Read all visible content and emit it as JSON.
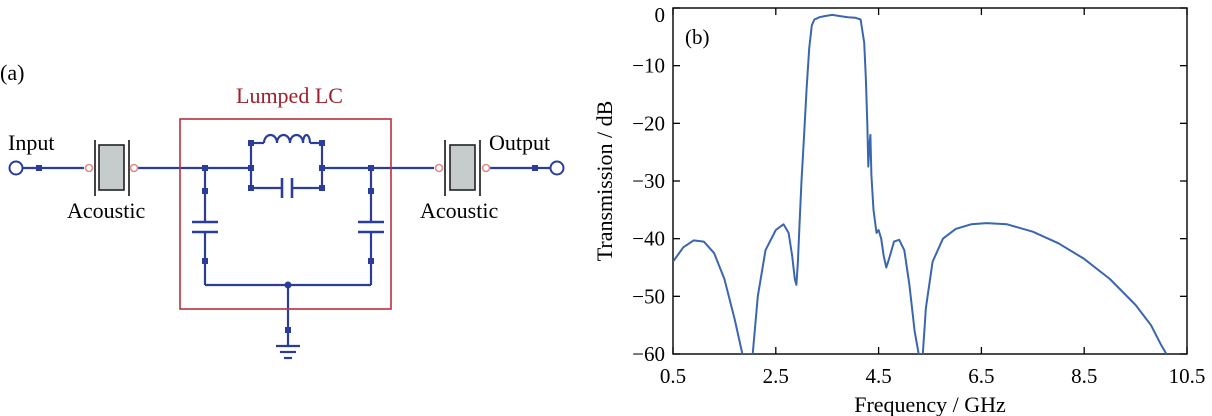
{
  "panel_a": {
    "label": "(a)",
    "input_label": "Input",
    "output_label": "Output",
    "left_resonator_label": "Acoustic",
    "right_resonator_label": "Acoustic",
    "lc_box_label": "Lumped LC",
    "colors": {
      "wire": "#2a3d9a",
      "box": "#b8303c",
      "box_label": "#a0202c",
      "resonator_fill": "#c6cbcb",
      "terminal_dot": "#e08a8a"
    }
  },
  "panel_b": {
    "label": "(b)",
    "line_color": "#3a66b0"
  },
  "chart_data": {
    "type": "line",
    "xlabel": "Frequency / GHz",
    "ylabel": "Transmission / dB",
    "xlim": [
      0.5,
      10.5
    ],
    "ylim": [
      -60,
      0
    ],
    "xticks": [
      "0.5",
      "2.5",
      "4.5",
      "6.5",
      "8.5",
      "10.5"
    ],
    "yticks": [
      "0",
      "−10",
      "−20",
      "−30",
      "−40",
      "−50",
      "−60"
    ],
    "grid": false,
    "series": [
      {
        "x": [
          0.5,
          0.7,
          0.9,
          1.1,
          1.3,
          1.5,
          1.7,
          1.85,
          1.95,
          2.0,
          2.05,
          2.15,
          2.3,
          2.5,
          2.65,
          2.75,
          2.82,
          2.87,
          2.9,
          2.93,
          2.96,
          3.0,
          3.05,
          3.1,
          3.15,
          3.2,
          3.25,
          3.3,
          3.35,
          3.45,
          3.6,
          3.75,
          3.9,
          4.05,
          4.15,
          4.22,
          4.25,
          4.28,
          4.3,
          4.32,
          4.34,
          4.36,
          4.4,
          4.46,
          4.5,
          4.55,
          4.6,
          4.65,
          4.72,
          4.8,
          4.9,
          5.0,
          5.1,
          5.2,
          5.28,
          5.33,
          5.36,
          5.42,
          5.55,
          5.75,
          6.0,
          6.3,
          6.6,
          7.0,
          7.5,
          8.0,
          8.5,
          9.0,
          9.5,
          9.8,
          10.0,
          10.1
        ],
        "y": [
          -44,
          -41.5,
          -40.3,
          -40.5,
          -42.5,
          -47,
          -54,
          -60,
          -60,
          -60,
          -60,
          -50,
          -42,
          -38.5,
          -37.5,
          -39,
          -43,
          -47,
          -48,
          -44,
          -38,
          -30,
          -22,
          -14,
          -7,
          -3,
          -2,
          -1.8,
          -1.6,
          -1.4,
          -1.2,
          -1.4,
          -1.6,
          -1.7,
          -2,
          -6,
          -12,
          -20,
          -27.5,
          -24,
          -22,
          -29,
          -35,
          -39,
          -38.5,
          -40,
          -43,
          -45,
          -43,
          -40.5,
          -40.2,
          -42,
          -48,
          -56,
          -60,
          -60,
          -60,
          -52,
          -44,
          -40,
          -38.3,
          -37.5,
          -37.3,
          -37.5,
          -38.8,
          -40.8,
          -43.5,
          -47,
          -51.5,
          -55,
          -58.5,
          -60
        ]
      }
    ]
  }
}
